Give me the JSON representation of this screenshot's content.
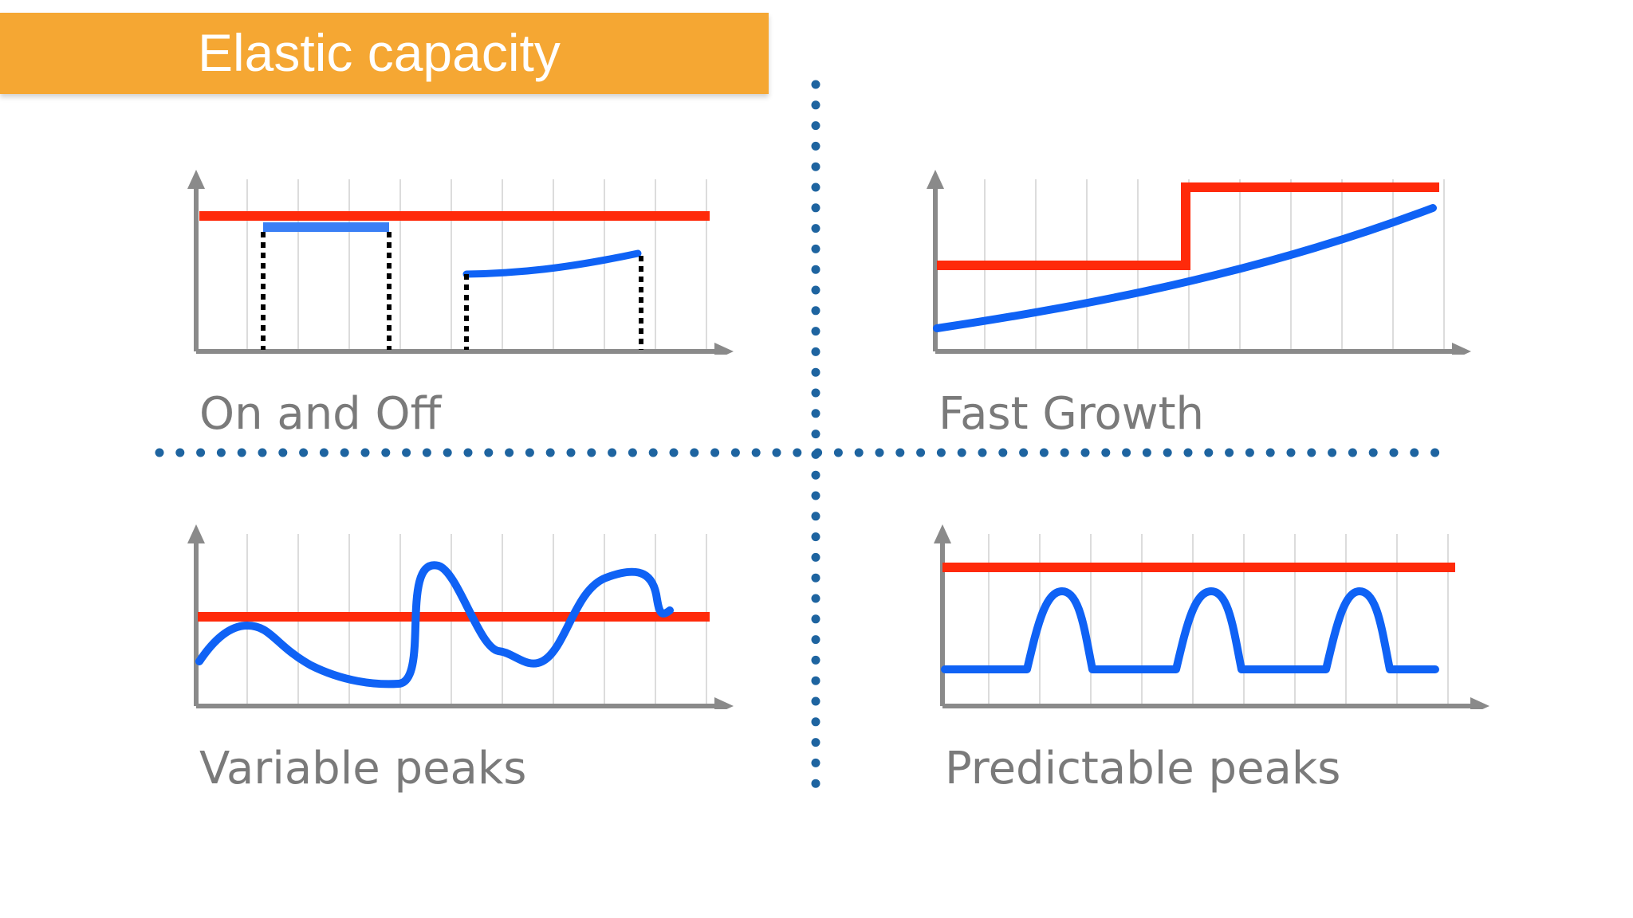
{
  "title": "Elastic capacity",
  "colors": {
    "accent_orange": "#f5a733",
    "capacity_red": "#ff2a0a",
    "demand_blue": "#0f62f5",
    "divider_blue": "#1e64a0",
    "axis_gray": "#8a8a8a",
    "caption_gray": "#7a7a7a"
  },
  "panels": [
    {
      "id": "on-and-off",
      "caption": "On and Off"
    },
    {
      "id": "fast-growth",
      "caption": "Fast Growth"
    },
    {
      "id": "variable-peaks",
      "caption": "Variable peaks"
    },
    {
      "id": "predictable-peaks",
      "caption": "Predictable peaks"
    }
  ]
}
